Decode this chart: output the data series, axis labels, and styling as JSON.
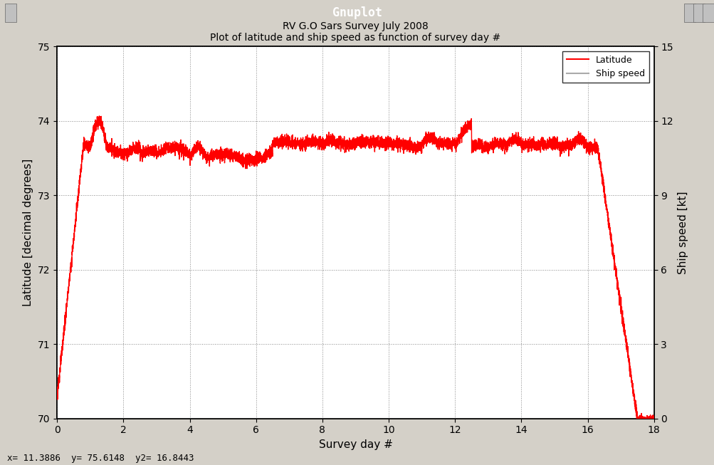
{
  "title_line1": "RV G.O Sars Survey July 2008",
  "title_line2": "Plot of latitude and ship speed as function of survey day #",
  "xlabel": "Survey day #",
  "ylabel_left": "Latitude [decimal degrees]",
  "ylabel_right": "Ship speed [kt]",
  "xlim": [
    0,
    18
  ],
  "ylim_left": [
    70,
    75
  ],
  "ylim_right": [
    0,
    15
  ],
  "xticks": [
    0,
    2,
    4,
    6,
    8,
    10,
    12,
    14,
    16,
    18
  ],
  "yticks_left": [
    70,
    71,
    72,
    73,
    74,
    75
  ],
  "yticks_right": [
    0,
    3,
    6,
    9,
    12,
    15
  ],
  "background_color": "#ffffff",
  "grid_color": "#888888",
  "latitude_color": "#ff0000",
  "speed_green_color": "#00ff00",
  "speed_gray_color": "#aaaaaa",
  "status_bar_text": "x= 11.3886  y= 75.6148  y2= 16.8443",
  "window_title": "Gnuplot",
  "window_title_bg": "#4a90d9",
  "window_bg": "#d4d0c8",
  "legend_labels": [
    "Latitude",
    "Ship speed"
  ],
  "font_size_ticks": 10,
  "font_size_labels": 11,
  "font_size_title": 10
}
